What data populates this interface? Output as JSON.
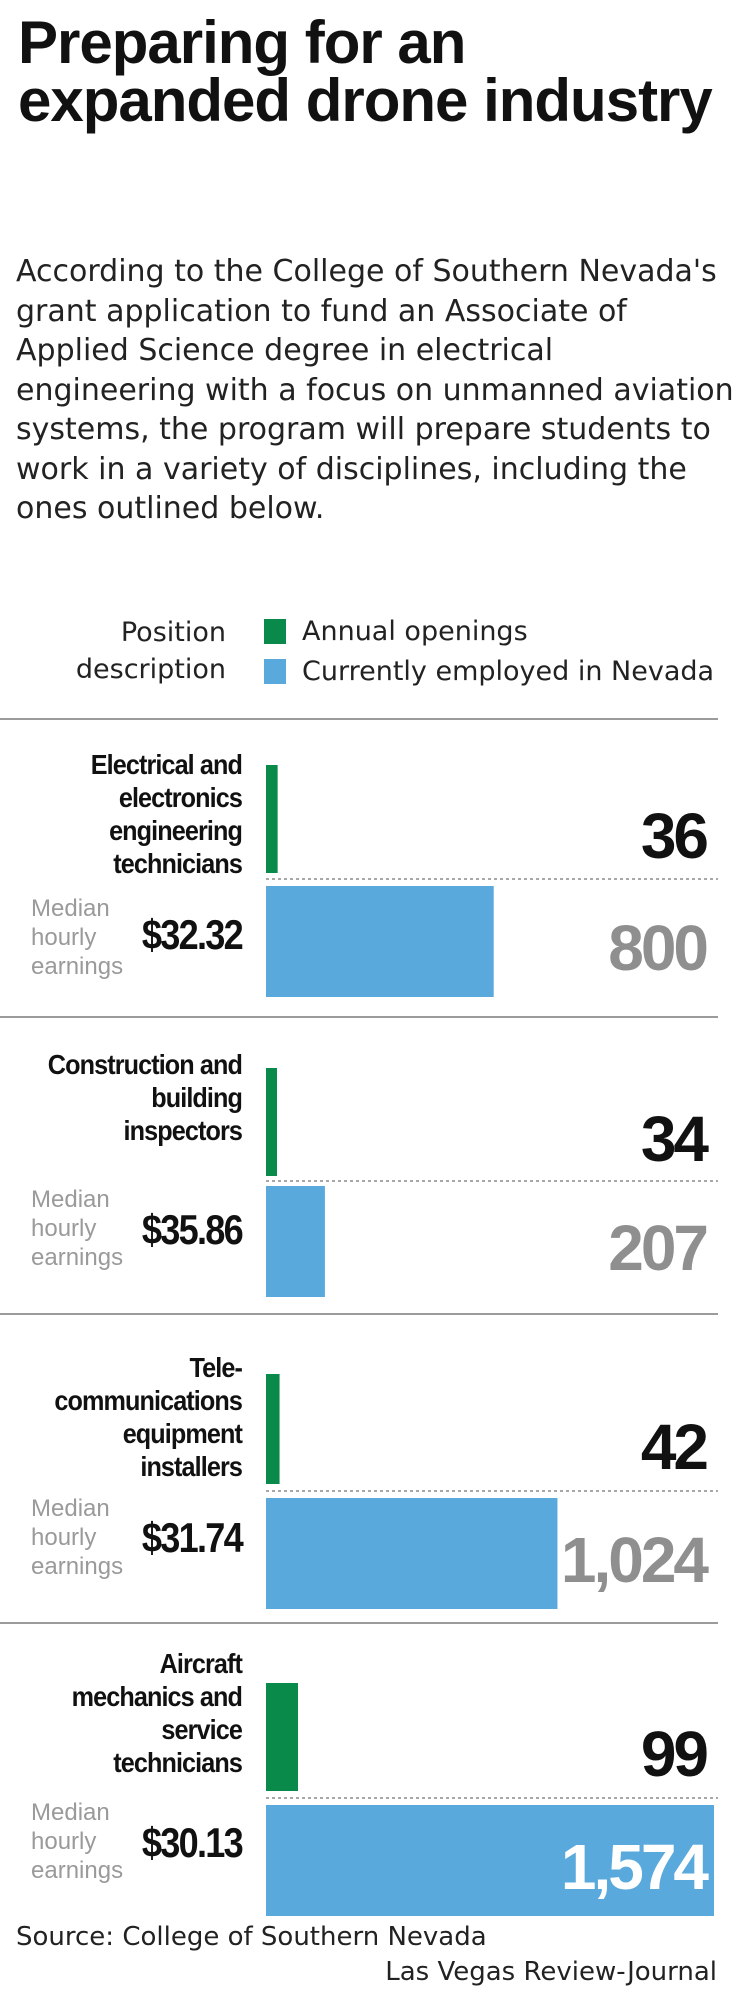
{
  "title": "Preparing for an expanded drone industry",
  "intro": "According to the College of Southern Nevada's grant application to fund an Associate of Applied Science degree in electrical engineering with a focus on unmanned aviation systems, the program will prepare students to work in a variety of disciplines, including the ones outlined below.",
  "legend": {
    "position_header": "Position description",
    "annual_label": "Annual openings",
    "employed_label": "Currently employed in Nevada"
  },
  "median_label": "Median hourly earnings",
  "colors": {
    "annual": "#0a8a4a",
    "employed": "#5aa9dd",
    "annual_text": "#111111",
    "employed_text": "#8f8f8f",
    "employed_text_inside": "#ffffff"
  },
  "chart_data": {
    "type": "bar",
    "categories": [
      "Electrical and electronics engineering technicians",
      "Construction and building inspectors",
      "Tele-communications equipment installers",
      "Aircraft mechanics and service technicians"
    ],
    "series": [
      {
        "name": "Annual openings",
        "values": [
          36,
          34,
          42,
          99
        ]
      },
      {
        "name": "Currently employed in Nevada",
        "values": [
          800,
          207,
          1024,
          1574
        ]
      }
    ],
    "value_labels": {
      "annual": [
        "36",
        "34",
        "42",
        "99"
      ],
      "employed": [
        "800",
        "207",
        "1,024",
        "1,574"
      ]
    },
    "median_hourly_earnings": [
      "$32.32",
      "$35.86",
      "$31.74",
      "$30.13"
    ]
  },
  "source": "Source: College of Southern Nevada",
  "credit": "Las Vegas Review-Journal"
}
